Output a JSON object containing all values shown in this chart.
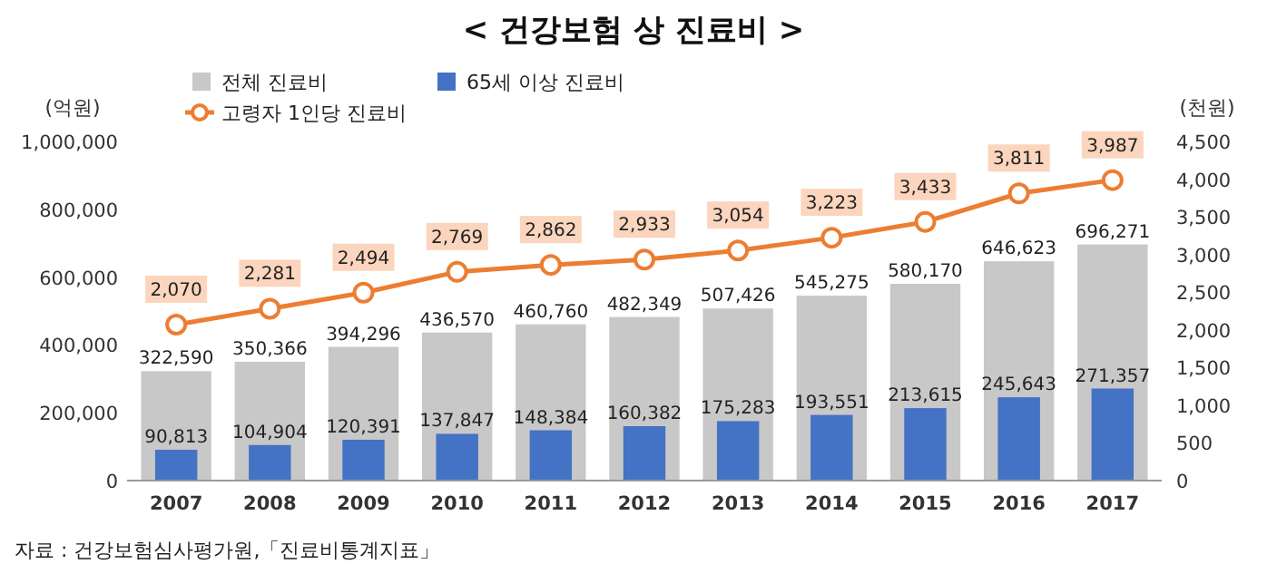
{
  "chart_data": {
    "type": "bar",
    "title": "< 건강보험 상 진료비 >",
    "ylabel": "(억원)",
    "y2label": "(천원)",
    "categories": [
      "2007",
      "2008",
      "2009",
      "2010",
      "2011",
      "2012",
      "2013",
      "2014",
      "2015",
      "2016",
      "2017"
    ],
    "series": [
      {
        "name": "전체 진료비",
        "color": "#c8c8c8",
        "values": [
          322590,
          350366,
          394296,
          436570,
          460760,
          482349,
          507426,
          545275,
          580170,
          646623,
          696271
        ],
        "value_labels": [
          "322,590",
          "350,366",
          "394,296",
          "436,570",
          "460,760",
          "482,349",
          "507,426",
          "545,275",
          "580,170",
          "646,623",
          "696,271"
        ]
      },
      {
        "name": "65세 이상 진료비",
        "color": "#4472c4",
        "values": [
          90813,
          104904,
          120391,
          137847,
          148384,
          160382,
          175283,
          193551,
          213615,
          245643,
          271357
        ],
        "value_labels": [
          "90,813",
          "104,904",
          "120,391",
          "137,847",
          "148,384",
          "160,382",
          "175,283",
          "193,551",
          "213,615",
          "245,643",
          "271,357"
        ]
      },
      {
        "name": "고령자 1인당 진료비",
        "type": "line",
        "axis": "y2",
        "color": "#ed7d31",
        "marker": "circle",
        "values": [
          2070,
          2281,
          2494,
          2769,
          2862,
          2933,
          3054,
          3223,
          3433,
          3811,
          3987
        ],
        "value_labels": [
          "2,070",
          "2,281",
          "2,494",
          "2,769",
          "2,862",
          "2,933",
          "3,054",
          "3,223",
          "3,433",
          "3,811",
          "3,987"
        ]
      }
    ],
    "ylim": [
      0,
      1000000
    ],
    "yticks": [
      {
        "value": 0,
        "label": "0"
      },
      {
        "value": 200000,
        "label": "200,000"
      },
      {
        "value": 400000,
        "label": "400,000"
      },
      {
        "value": 600000,
        "label": "600,000"
      },
      {
        "value": 800000,
        "label": "800,000"
      },
      {
        "value": 1000000,
        "label": "1,000,000"
      }
    ],
    "y2lim": [
      0,
      4500
    ],
    "y2ticks": [
      {
        "value": 0,
        "label": "0"
      },
      {
        "value": 500,
        "label": "500"
      },
      {
        "value": 1000,
        "label": "1,000"
      },
      {
        "value": 1500,
        "label": "1,500"
      },
      {
        "value": 2000,
        "label": "2,000"
      },
      {
        "value": 2500,
        "label": "2,500"
      },
      {
        "value": 3000,
        "label": "3,000"
      },
      {
        "value": 3500,
        "label": "3,500"
      },
      {
        "value": 4000,
        "label": "4,000"
      },
      {
        "value": 4500,
        "label": "4,500"
      }
    ],
    "legend": "top",
    "grid": false,
    "annotations": [
      "자료 : 건강보험심사평가원,「진료비통계지표」"
    ]
  }
}
